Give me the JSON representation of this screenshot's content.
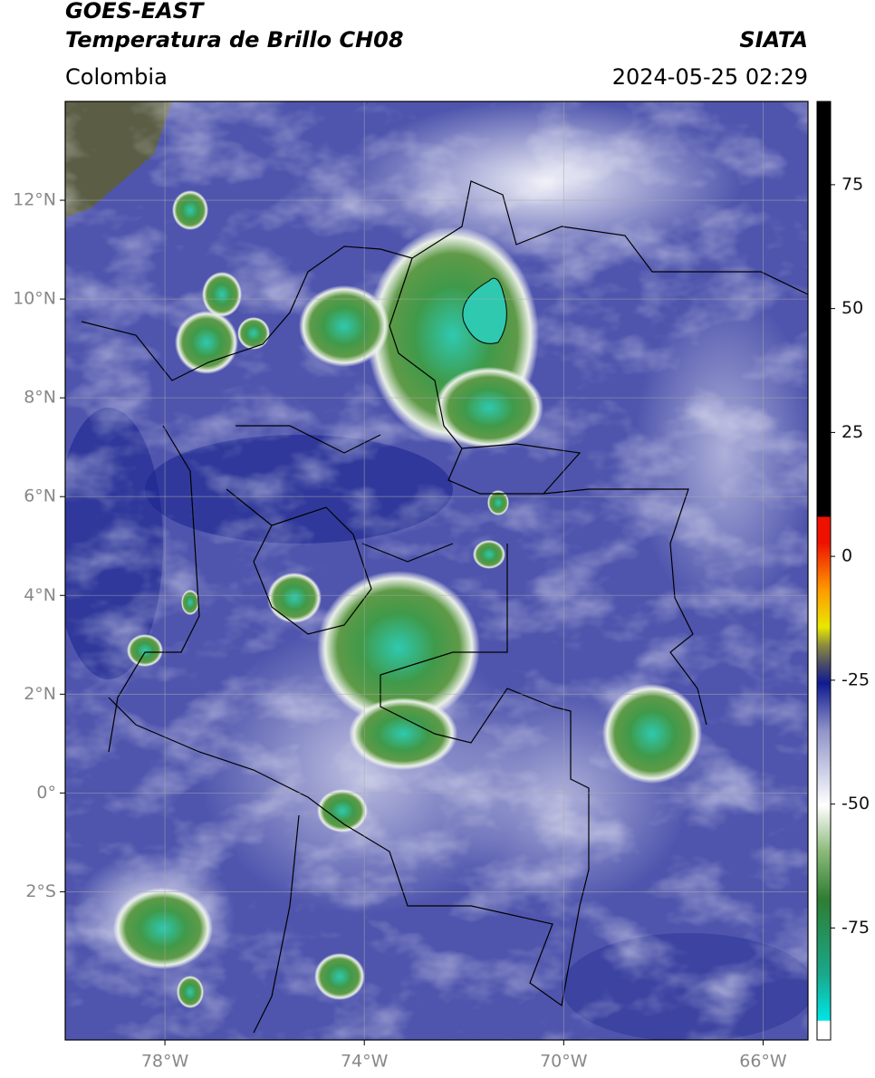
{
  "header": {
    "satellite": "GOES-EAST",
    "product": "Temperatura de Brillo CH08",
    "source": "SIATA",
    "region": "Colombia",
    "datetime": "2024-05-25 02:29"
  },
  "map": {
    "xlim": [
      -80,
      -65.1
    ],
    "ylim": [
      -5,
      14
    ],
    "xticks": [
      {
        "value": -78,
        "label": "78°W"
      },
      {
        "value": -74,
        "label": "74°W"
      },
      {
        "value": -70,
        "label": "70°W"
      },
      {
        "value": -66,
        "label": "66°W"
      }
    ],
    "yticks": [
      {
        "value": 12,
        "label": "12°N"
      },
      {
        "value": 10,
        "label": "10°N"
      },
      {
        "value": 8,
        "label": "8°N"
      },
      {
        "value": 6,
        "label": "6°N"
      },
      {
        "value": 4,
        "label": "4°N"
      },
      {
        "value": 2,
        "label": "2°N"
      },
      {
        "value": 0,
        "label": "0°"
      },
      {
        "value": -2,
        "label": "2°S"
      }
    ],
    "grid": true
  },
  "colorbar": {
    "lim": [
      -97.6,
      91.8
    ],
    "ticks": [
      75,
      50,
      25,
      0,
      -25,
      -50,
      -75
    ]
  }
}
